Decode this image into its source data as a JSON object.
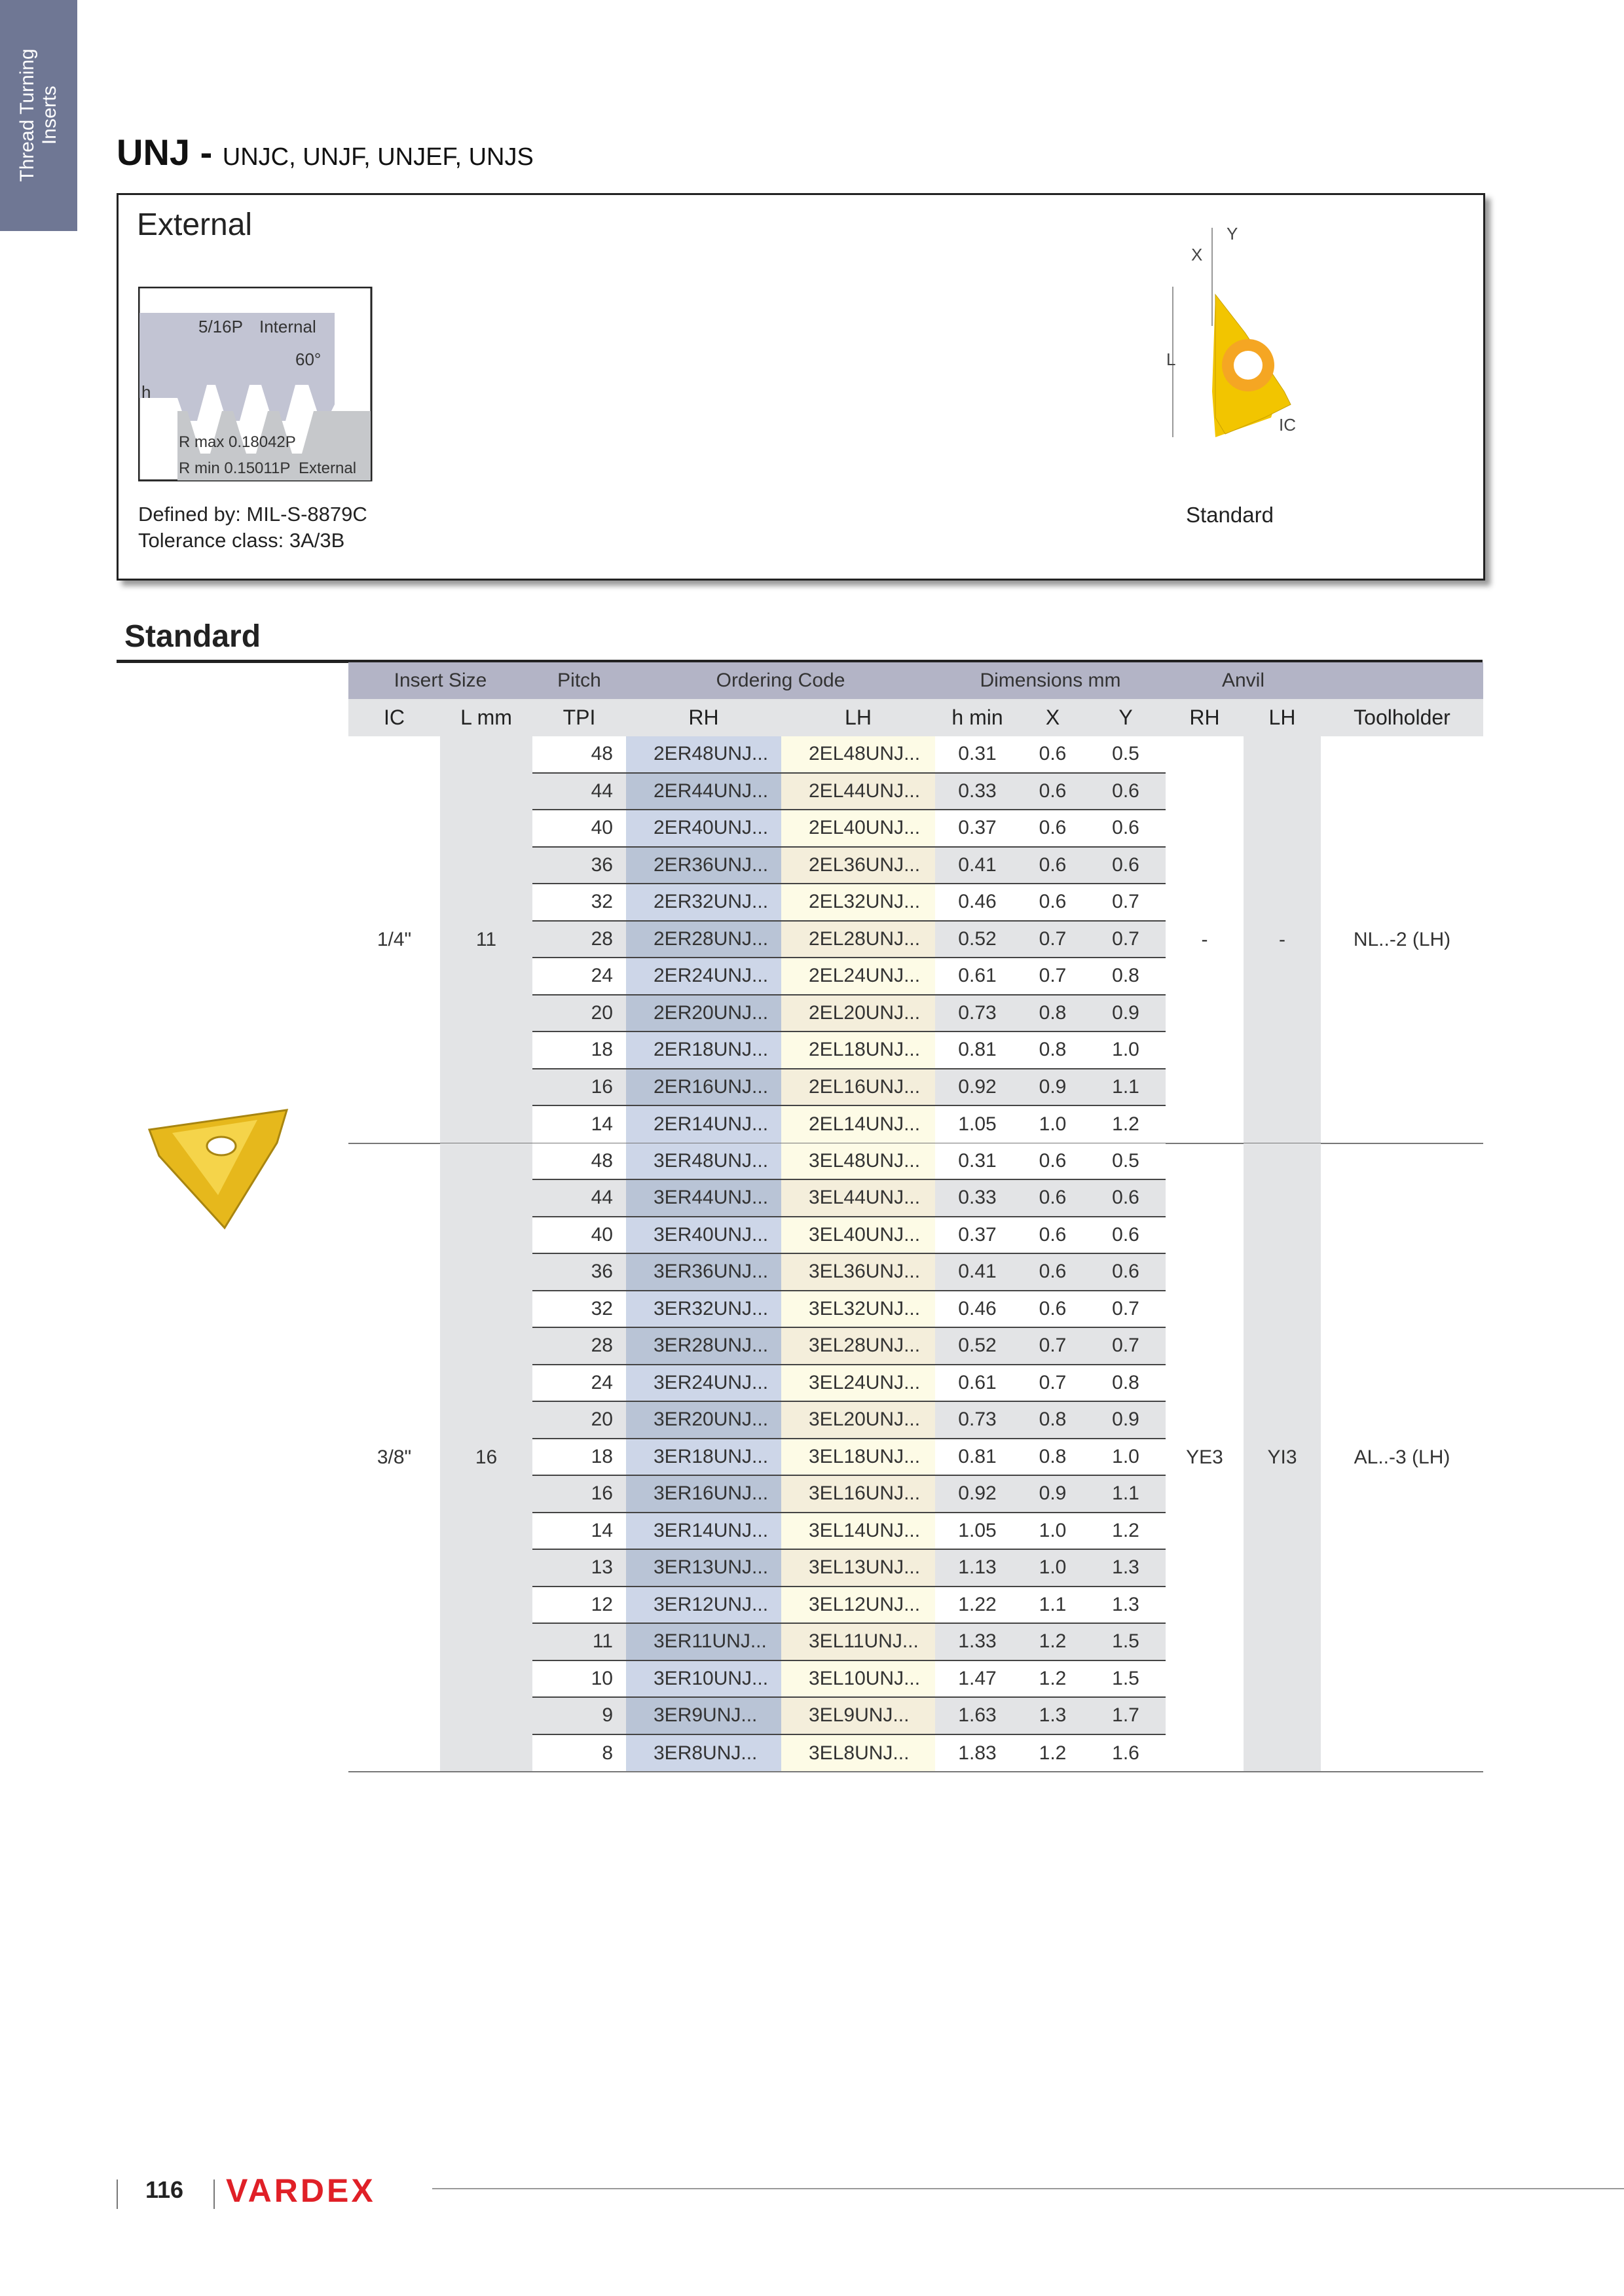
{
  "sidetab": {
    "line1": "Thread Turning",
    "line2": "Inserts"
  },
  "title": {
    "main": "UNJ -",
    "sub": "UNJC, UNJF, UNJEF, UNJS"
  },
  "external": {
    "title": "External",
    "profile": {
      "pitch_label": "5/16P",
      "internal": "Internal",
      "angle": "60°",
      "h": "h",
      "rmax": "R max 0.18042P",
      "rmin": "R min 0.15011P",
      "external": "External"
    },
    "defined_by": "Defined by: MIL-S-8879C",
    "tolerance": "Tolerance class: 3A/3B",
    "insert_labels": {
      "x": "X",
      "y": "Y",
      "l": "L",
      "ic": "IC"
    },
    "insert_caption": "Standard"
  },
  "section": {
    "title": "Standard"
  },
  "table": {
    "group_headers": [
      "Insert Size",
      "Pitch",
      "Ordering Code",
      "Dimensions mm",
      "Anvil"
    ],
    "columns": [
      "IC",
      "L mm",
      "TPI",
      "RH",
      "LH",
      "h min",
      "X",
      "Y",
      "RH",
      "LH",
      "Toolholder"
    ],
    "groups": [
      {
        "ic": "1/4\"",
        "l": "11",
        "anvil_rh": "-",
        "anvil_lh": "-",
        "toolholder": "NL..-2 (LH)",
        "rows": [
          [
            "48",
            "2ER48UNJ...",
            "2EL48UNJ...",
            "0.31",
            "0.6",
            "0.5"
          ],
          [
            "44",
            "2ER44UNJ...",
            "2EL44UNJ...",
            "0.33",
            "0.6",
            "0.6"
          ],
          [
            "40",
            "2ER40UNJ...",
            "2EL40UNJ...",
            "0.37",
            "0.6",
            "0.6"
          ],
          [
            "36",
            "2ER36UNJ...",
            "2EL36UNJ...",
            "0.41",
            "0.6",
            "0.6"
          ],
          [
            "32",
            "2ER32UNJ...",
            "2EL32UNJ...",
            "0.46",
            "0.6",
            "0.7"
          ],
          [
            "28",
            "2ER28UNJ...",
            "2EL28UNJ...",
            "0.52",
            "0.7",
            "0.7"
          ],
          [
            "24",
            "2ER24UNJ...",
            "2EL24UNJ...",
            "0.61",
            "0.7",
            "0.8"
          ],
          [
            "20",
            "2ER20UNJ...",
            "2EL20UNJ...",
            "0.73",
            "0.8",
            "0.9"
          ],
          [
            "18",
            "2ER18UNJ...",
            "2EL18UNJ...",
            "0.81",
            "0.8",
            "1.0"
          ],
          [
            "16",
            "2ER16UNJ...",
            "2EL16UNJ...",
            "0.92",
            "0.9",
            "1.1"
          ],
          [
            "14",
            "2ER14UNJ...",
            "2EL14UNJ...",
            "1.05",
            "1.0",
            "1.2"
          ]
        ]
      },
      {
        "ic": "3/8\"",
        "l": "16",
        "anvil_rh": "YE3",
        "anvil_lh": "YI3",
        "toolholder": "AL..-3 (LH)",
        "rows": [
          [
            "48",
            "3ER48UNJ...",
            "3EL48UNJ...",
            "0.31",
            "0.6",
            "0.5"
          ],
          [
            "44",
            "3ER44UNJ...",
            "3EL44UNJ...",
            "0.33",
            "0.6",
            "0.6"
          ],
          [
            "40",
            "3ER40UNJ...",
            "3EL40UNJ...",
            "0.37",
            "0.6",
            "0.6"
          ],
          [
            "36",
            "3ER36UNJ...",
            "3EL36UNJ...",
            "0.41",
            "0.6",
            "0.6"
          ],
          [
            "32",
            "3ER32UNJ...",
            "3EL32UNJ...",
            "0.46",
            "0.6",
            "0.7"
          ],
          [
            "28",
            "3ER28UNJ...",
            "3EL28UNJ...",
            "0.52",
            "0.7",
            "0.7"
          ],
          [
            "24",
            "3ER24UNJ...",
            "3EL24UNJ...",
            "0.61",
            "0.7",
            "0.8"
          ],
          [
            "20",
            "3ER20UNJ...",
            "3EL20UNJ...",
            "0.73",
            "0.8",
            "0.9"
          ],
          [
            "18",
            "3ER18UNJ...",
            "3EL18UNJ...",
            "0.81",
            "0.8",
            "1.0"
          ],
          [
            "16",
            "3ER16UNJ...",
            "3EL16UNJ...",
            "0.92",
            "0.9",
            "1.1"
          ],
          [
            "14",
            "3ER14UNJ...",
            "3EL14UNJ...",
            "1.05",
            "1.0",
            "1.2"
          ],
          [
            "13",
            "3ER13UNJ...",
            "3EL13UNJ...",
            "1.13",
            "1.0",
            "1.3"
          ],
          [
            "12",
            "3ER12UNJ...",
            "3EL12UNJ...",
            "1.22",
            "1.1",
            "1.3"
          ],
          [
            "11",
            "3ER11UNJ...",
            "3EL11UNJ...",
            "1.33",
            "1.2",
            "1.5"
          ],
          [
            "10",
            "3ER10UNJ...",
            "3EL10UNJ...",
            "1.47",
            "1.2",
            "1.5"
          ],
          [
            "9",
            "3ER9UNJ...",
            "3EL9UNJ...",
            "1.63",
            "1.3",
            "1.7"
          ],
          [
            "8",
            "3ER8UNJ...",
            "3EL8UNJ...",
            "1.83",
            "1.2",
            "1.6"
          ]
        ]
      }
    ]
  },
  "footer": {
    "page": "116",
    "brand": "VARDEX"
  },
  "colors": {
    "sidetab": "#6f7794",
    "brand": "#e02027",
    "insert": "#f2c500"
  }
}
